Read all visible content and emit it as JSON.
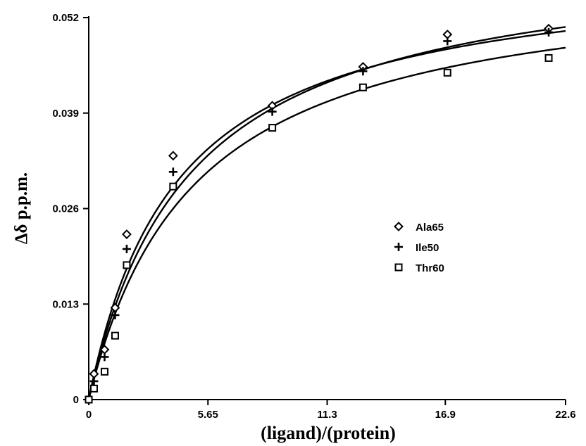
{
  "chart_data": {
    "type": "scatter",
    "xlabel": "(ligand)/(protein)",
    "ylabel": "Δδ p.p.m.",
    "xlim": [
      0,
      22.6
    ],
    "ylim": [
      0,
      0.052
    ],
    "xticks": [
      0,
      5.65,
      11.3,
      16.9,
      22.6
    ],
    "xtick_labels": [
      "0",
      "5.65",
      "11.3",
      "16.9",
      "22.6"
    ],
    "yticks": [
      0,
      0.013,
      0.026,
      0.039,
      0.052
    ],
    "ytick_labels": [
      "0",
      "0.013",
      "0.026",
      "0.039",
      "0.052"
    ],
    "grid": false,
    "legend_position": "center-right",
    "series": [
      {
        "name": "Ala65",
        "marker": "diamond",
        "points": [
          [
            0,
            0
          ],
          [
            0.25,
            0.0035
          ],
          [
            0.75,
            0.0068
          ],
          [
            1.25,
            0.0125
          ],
          [
            1.8,
            0.0225
          ],
          [
            4.0,
            0.0332
          ],
          [
            8.7,
            0.04
          ],
          [
            13.0,
            0.0453
          ],
          [
            17.0,
            0.0497
          ],
          [
            21.8,
            0.0505
          ]
        ],
        "fit": {
          "max": 0.0595,
          "k": 4.2
        }
      },
      {
        "name": "Ile50",
        "marker": "plus",
        "points": [
          [
            0,
            0
          ],
          [
            0.25,
            0.0025
          ],
          [
            0.75,
            0.0058
          ],
          [
            1.25,
            0.0115
          ],
          [
            1.8,
            0.0205
          ],
          [
            4.0,
            0.031
          ],
          [
            8.7,
            0.0392
          ],
          [
            13.0,
            0.0447
          ],
          [
            17.0,
            0.0488
          ],
          [
            21.8,
            0.05
          ]
        ],
        "fit": {
          "max": 0.0615,
          "k": 4.8
        }
      },
      {
        "name": "Thr60",
        "marker": "square",
        "points": [
          [
            0,
            0
          ],
          [
            0.25,
            0.0015
          ],
          [
            0.75,
            0.0038
          ],
          [
            1.25,
            0.0087
          ],
          [
            1.8,
            0.0183
          ],
          [
            4.0,
            0.029
          ],
          [
            8.7,
            0.037
          ],
          [
            13.0,
            0.0425
          ],
          [
            17.0,
            0.0445
          ],
          [
            21.8,
            0.0465
          ]
        ],
        "fit": {
          "max": 0.0585,
          "k": 5.0
        }
      }
    ]
  }
}
